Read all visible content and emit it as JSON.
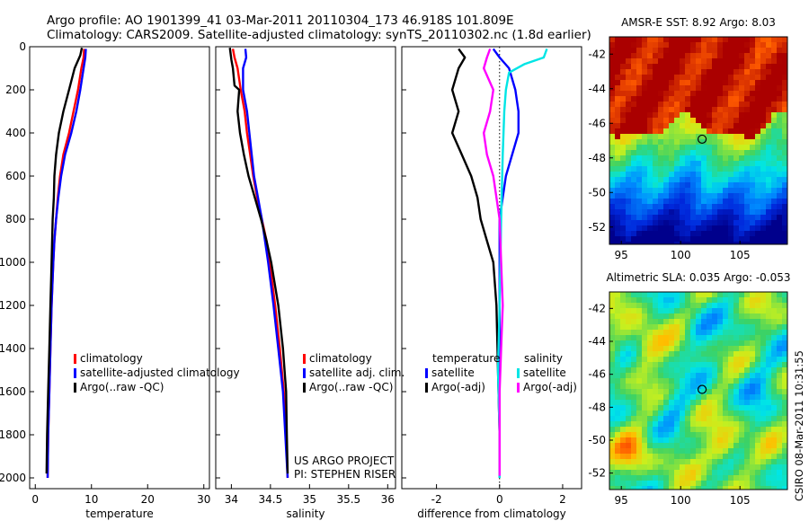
{
  "header": {
    "line1": "Argo profile: AO 1901399_41 03-Mar-2011 20110304_173 46.918S 101.809E",
    "line2": "Climatology: CARS2009. Satellite-adjusted climatology: synTS_20110302.nc (1.8d earlier)"
  },
  "chart_data": [
    {
      "type": "line",
      "xlabel": "temperature",
      "xlim": [
        -1,
        31
      ],
      "ylim": [
        2050,
        0
      ],
      "xticks": [
        "0",
        "10",
        "20",
        "30"
      ],
      "xtick_values": [
        0,
        10,
        20,
        30
      ],
      "yticks": [
        "0",
        "200",
        "400",
        "600",
        "800",
        "1000",
        "1200",
        "1400",
        "1600",
        "1800",
        "2000"
      ],
      "ytick_values": [
        0,
        200,
        400,
        600,
        800,
        1000,
        1200,
        1400,
        1600,
        1800,
        2000
      ],
      "legend": [
        "climatology",
        "satellite-adjusted climatology",
        "Argo(..raw -QC)"
      ],
      "series": [
        {
          "name": "climatology",
          "color": "#ff0000",
          "points": [
            [
              8.7,
              10
            ],
            [
              8.6,
              50
            ],
            [
              8.2,
              100
            ],
            [
              7.6,
              200
            ],
            [
              6.8,
              300
            ],
            [
              6.0,
              400
            ],
            [
              5.0,
              500
            ],
            [
              4.4,
              600
            ],
            [
              4.0,
              700
            ],
            [
              3.7,
              800
            ],
            [
              3.4,
              900
            ],
            [
              3.2,
              1000
            ],
            [
              2.9,
              1200
            ],
            [
              2.7,
              1400
            ],
            [
              2.5,
              1600
            ],
            [
              2.3,
              1800
            ],
            [
              2.2,
              2000
            ]
          ]
        },
        {
          "name": "satellite-adjusted climatology",
          "color": "#0000ff",
          "points": [
            [
              9.0,
              10
            ],
            [
              8.9,
              50
            ],
            [
              8.6,
              100
            ],
            [
              8.0,
              200
            ],
            [
              7.3,
              300
            ],
            [
              6.4,
              400
            ],
            [
              5.3,
              500
            ],
            [
              4.6,
              600
            ],
            [
              4.1,
              700
            ],
            [
              3.7,
              800
            ],
            [
              3.4,
              900
            ],
            [
              3.2,
              1000
            ],
            [
              2.9,
              1200
            ],
            [
              2.7,
              1400
            ],
            [
              2.5,
              1600
            ],
            [
              2.3,
              1800
            ],
            [
              2.2,
              2000
            ]
          ]
        },
        {
          "name": "Argo(..raw -QC)",
          "color": "#000000",
          "points": [
            [
              8.3,
              5
            ],
            [
              8.0,
              40
            ],
            [
              7.0,
              100
            ],
            [
              6.0,
              200
            ],
            [
              5.0,
              300
            ],
            [
              4.2,
              400
            ],
            [
              3.7,
              500
            ],
            [
              3.4,
              600
            ],
            [
              3.3,
              700
            ],
            [
              3.1,
              800
            ],
            [
              3.0,
              900
            ],
            [
              2.9,
              1000
            ],
            [
              2.7,
              1200
            ],
            [
              2.5,
              1400
            ],
            [
              2.3,
              1600
            ],
            [
              2.1,
              1800
            ],
            [
              2.0,
              1980
            ]
          ]
        }
      ]
    },
    {
      "type": "line",
      "xlabel": "salinity",
      "xlim": [
        33.8,
        36.1
      ],
      "ylim": [
        2050,
        0
      ],
      "xticks": [
        "34",
        "34.5",
        "35",
        "35.5",
        "36"
      ],
      "xtick_values": [
        34,
        34.5,
        35,
        35.5,
        36
      ],
      "legend": [
        "climatology",
        "satellite adj. clim.",
        "Argo(..raw -QC)"
      ],
      "series": [
        {
          "name": "climatology",
          "color": "#ff0000",
          "points": [
            [
              34.02,
              10
            ],
            [
              34.04,
              50
            ],
            [
              34.08,
              100
            ],
            [
              34.12,
              200
            ],
            [
              34.17,
              300
            ],
            [
              34.2,
              400
            ],
            [
              34.24,
              500
            ],
            [
              34.28,
              600
            ],
            [
              34.33,
              700
            ],
            [
              34.39,
              800
            ],
            [
              34.45,
              900
            ],
            [
              34.49,
              1000
            ],
            [
              34.56,
              1200
            ],
            [
              34.62,
              1400
            ],
            [
              34.67,
              1600
            ],
            [
              34.7,
              1800
            ],
            [
              34.72,
              2000
            ]
          ]
        },
        {
          "name": "satellite adj. clim.",
          "color": "#0000ff",
          "points": [
            [
              34.18,
              10
            ],
            [
              34.19,
              50
            ],
            [
              34.15,
              100
            ],
            [
              34.15,
              200
            ],
            [
              34.2,
              300
            ],
            [
              34.23,
              400
            ],
            [
              34.26,
              500
            ],
            [
              34.29,
              600
            ],
            [
              34.34,
              700
            ],
            [
              34.39,
              800
            ],
            [
              34.43,
              900
            ],
            [
              34.47,
              1000
            ],
            [
              34.54,
              1200
            ],
            [
              34.6,
              1400
            ],
            [
              34.66,
              1600
            ],
            [
              34.69,
              1800
            ],
            [
              34.72,
              2000
            ]
          ]
        },
        {
          "name": "Argo(..raw -QC)",
          "color": "#000000",
          "points": [
            [
              33.98,
              5
            ],
            [
              34.0,
              60
            ],
            [
              34.02,
              100
            ],
            [
              34.04,
              180
            ],
            [
              34.1,
              200
            ],
            [
              34.08,
              300
            ],
            [
              34.11,
              400
            ],
            [
              34.16,
              500
            ],
            [
              34.22,
              600
            ],
            [
              34.3,
              700
            ],
            [
              34.38,
              800
            ],
            [
              34.45,
              900
            ],
            [
              34.51,
              1000
            ],
            [
              34.6,
              1200
            ],
            [
              34.66,
              1400
            ],
            [
              34.7,
              1600
            ],
            [
              34.71,
              1800
            ],
            [
              34.72,
              1980
            ]
          ]
        }
      ],
      "annotations": [
        "US ARGO PROJECT",
        "PI: STEPHEN RISER"
      ]
    },
    {
      "type": "line",
      "xlabel": "difference from climatology",
      "xlim": [
        -3.1,
        2.6
      ],
      "ylim": [
        2050,
        0
      ],
      "xticks": [
        "-2",
        "0",
        "2"
      ],
      "xtick_values": [
        -2,
        0,
        2
      ],
      "legend_groups": [
        {
          "title": "temperature",
          "items": [
            "satellite",
            "Argo(-adj)"
          ]
        },
        {
          "title": "salinity",
          "items": [
            "satellite",
            "Argo(-adj)"
          ]
        }
      ],
      "series": [
        {
          "name": "temperature satellite",
          "color": "#0000ff",
          "points": [
            [
              -0.2,
              10
            ],
            [
              0.0,
              50
            ],
            [
              0.3,
              100
            ],
            [
              0.5,
              200
            ],
            [
              0.6,
              300
            ],
            [
              0.6,
              400
            ],
            [
              0.4,
              500
            ],
            [
              0.2,
              600
            ],
            [
              0.1,
              700
            ],
            [
              0.0,
              800
            ],
            [
              0.0,
              1000
            ],
            [
              0.0,
              1500
            ],
            [
              0.0,
              2000
            ]
          ]
        },
        {
          "name": "temperature Argo(-adj)",
          "color": "#000000",
          "points": [
            [
              -1.3,
              10
            ],
            [
              -1.1,
              50
            ],
            [
              -1.3,
              100
            ],
            [
              -1.5,
              200
            ],
            [
              -1.3,
              300
            ],
            [
              -1.5,
              400
            ],
            [
              -1.2,
              500
            ],
            [
              -0.9,
              600
            ],
            [
              -0.7,
              700
            ],
            [
              -0.6,
              800
            ],
            [
              -0.4,
              900
            ],
            [
              -0.2,
              1000
            ],
            [
              -0.1,
              1200
            ],
            [
              -0.05,
              1500
            ],
            [
              0.0,
              1800
            ],
            [
              0.0,
              1990
            ]
          ]
        },
        {
          "name": "salinity satellite",
          "color": "#00e5e5",
          "points": [
            [
              1.5,
              10
            ],
            [
              1.4,
              50
            ],
            [
              0.8,
              80
            ],
            [
              0.3,
              120
            ],
            [
              0.2,
              200
            ],
            [
              0.15,
              300
            ],
            [
              0.1,
              500
            ],
            [
              0.05,
              800
            ],
            [
              0.0,
              1200
            ],
            [
              -0.05,
              1500
            ],
            [
              0.0,
              1800
            ],
            [
              0.0,
              2000
            ]
          ]
        },
        {
          "name": "salinity Argo(-adj)",
          "color": "#ff00ff",
          "points": [
            [
              -0.3,
              10
            ],
            [
              -0.4,
              50
            ],
            [
              -0.5,
              100
            ],
            [
              -0.2,
              200
            ],
            [
              -0.3,
              300
            ],
            [
              -0.5,
              400
            ],
            [
              -0.4,
              500
            ],
            [
              -0.2,
              600
            ],
            [
              -0.1,
              700
            ],
            [
              0.0,
              800
            ],
            [
              0.05,
              1000
            ],
            [
              0.1,
              1200
            ],
            [
              0.05,
              1400
            ],
            [
              0.0,
              1600
            ],
            [
              0.0,
              1800
            ],
            [
              0.0,
              1990
            ]
          ]
        }
      ]
    },
    {
      "type": "heatmap",
      "title": "AMSR-E SST: 8.92 Argo: 8.03",
      "xlim": [
        94,
        109
      ],
      "ylim": [
        -53,
        -41
      ],
      "xticks": [
        "95",
        "100",
        "105"
      ],
      "xtick_values": [
        95,
        100,
        105
      ],
      "yticks": [
        "-42",
        "-44",
        "-46",
        "-48",
        "-50",
        "-52"
      ],
      "ytick_values": [
        -42,
        -44,
        -46,
        -48,
        -50,
        -52
      ],
      "marker": {
        "lon": 101.809,
        "lat": -46.918
      }
    },
    {
      "type": "heatmap",
      "title": "Altimetric SLA: 0.035 Argo: -0.053",
      "xlim": [
        94,
        109
      ],
      "ylim": [
        -53,
        -41
      ],
      "xticks": [
        "95",
        "100",
        "105"
      ],
      "xtick_values": [
        95,
        100,
        105
      ],
      "yticks": [
        "-42",
        "-44",
        "-46",
        "-48",
        "-50",
        "-52"
      ],
      "ytick_values": [
        -42,
        -44,
        -46,
        -48,
        -50,
        -52
      ],
      "marker": {
        "lon": 101.809,
        "lat": -46.918
      }
    }
  ],
  "footer": {
    "stamp": "CSIRO 08-Mar-2011 10:31:55"
  }
}
